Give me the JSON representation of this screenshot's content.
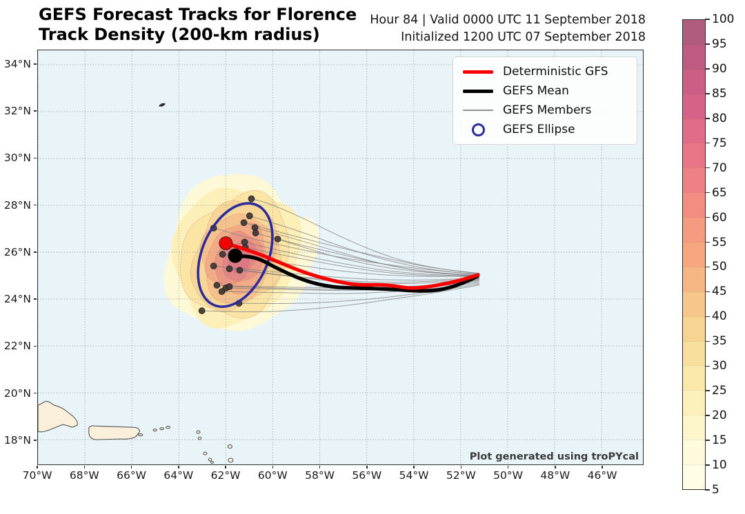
{
  "title": {
    "line1": "GEFS Forecast Tracks for Florence",
    "line2": "Track Density (200-km radius)"
  },
  "subtitle": {
    "line1": "Hour 84 | Valid 0000 UTC 11 September 2018",
    "line2": "Initialized 1200 UTC 07 September 2018"
  },
  "watermark": "Plot generated using troPYcal",
  "legend": {
    "items": [
      {
        "label": "Deterministic GFS",
        "swatch": "line-thick",
        "color": "#f80000"
      },
      {
        "label": "GEFS Mean",
        "swatch": "line-thick",
        "color": "#000000"
      },
      {
        "label": "GEFS Members",
        "swatch": "line-thin",
        "color": "#909090"
      },
      {
        "label": "GEFS Ellipse",
        "swatch": "ring",
        "color": "#2b2b9e"
      }
    ]
  },
  "colorbar": {
    "min": 5,
    "max": 100,
    "tick_step": 5,
    "ticks": [
      5,
      10,
      15,
      20,
      25,
      30,
      35,
      40,
      45,
      50,
      55,
      60,
      65,
      70,
      75,
      80,
      85,
      90,
      95,
      100
    ],
    "colors_bottom_to_top": [
      "#fffde5",
      "#fefadb",
      "#fdf6cb",
      "#fcf0bb",
      "#fbe9ac",
      "#f9df9e",
      "#f8d493",
      "#f7c68b",
      "#f6b684",
      "#f7a67f",
      "#f69a80",
      "#f38d81",
      "#ef8083",
      "#e97586",
      "#e06c87",
      "#d66387",
      "#cc5d85",
      "#bf5a82",
      "#b05c7f"
    ]
  },
  "map_style": {
    "sea_color": "#e9f4f8",
    "land_color": "#f9efda",
    "coast_color": "#555555",
    "grid_color": "#98a2a8",
    "frame_color": "#2c2c2c",
    "deterministic_color": "#f80000",
    "mean_color": "#000000",
    "member_color": "#7d7d7d",
    "member_dot_color": "#3d3636",
    "ellipse_color": "#2b2b9e"
  },
  "chart_data": {
    "type": "line",
    "title": "GEFS Forecast Tracks for Florence — Track Density (200-km radius)",
    "grid": "dotted",
    "x_axis": {
      "unit": "°W",
      "ticks": [
        70,
        68,
        66,
        64,
        62,
        60,
        58,
        56,
        54,
        52,
        50,
        48,
        46
      ],
      "range_lon_w": [
        70.0,
        44.2
      ]
    },
    "y_axis": {
      "unit": "°N",
      "ticks": [
        34,
        32,
        30,
        28,
        26,
        24,
        22,
        20,
        18
      ],
      "range_lat_n": [
        16.9,
        34.6
      ]
    },
    "deterministic_track": [
      [
        51.26,
        25.03
      ],
      [
        52.0,
        24.79
      ],
      [
        53.1,
        24.56
      ],
      [
        54.1,
        24.44
      ],
      [
        54.8,
        24.56
      ],
      [
        55.5,
        24.62
      ],
      [
        56.4,
        24.59
      ],
      [
        57.5,
        24.79
      ],
      [
        58.7,
        25.14
      ],
      [
        59.9,
        25.64
      ],
      [
        60.7,
        25.97
      ],
      [
        62.0,
        26.38
      ]
    ],
    "mean_track": [
      [
        51.29,
        24.97
      ],
      [
        52.0,
        24.62
      ],
      [
        53.0,
        24.35
      ],
      [
        54.0,
        24.35
      ],
      [
        54.8,
        24.41
      ],
      [
        56.3,
        24.47
      ],
      [
        57.5,
        24.5
      ],
      [
        58.7,
        24.79
      ],
      [
        59.9,
        25.35
      ],
      [
        60.7,
        25.79
      ],
      [
        61.6,
        25.85
      ]
    ],
    "deterministic_endpoint": [
      62.0,
      26.38
    ],
    "mean_endpoint": [
      61.6,
      25.85
    ],
    "member_tracks": [
      [
        [
          51.2,
          25.08
        ],
        [
          52.8,
          25.25
        ],
        [
          54.8,
          25.7
        ],
        [
          56.8,
          26.5
        ],
        [
          58.8,
          27.5
        ],
        [
          60.2,
          28.1
        ],
        [
          60.91,
          28.28
        ]
      ],
      [
        [
          51.22,
          25.02
        ],
        [
          53.0,
          25.2
        ],
        [
          55.0,
          25.6
        ],
        [
          57.0,
          26.2
        ],
        [
          59.0,
          26.95
        ],
        [
          60.99,
          27.55
        ]
      ],
      [
        [
          51.2,
          25.1
        ],
        [
          53.2,
          25.3
        ],
        [
          55.2,
          25.75
        ],
        [
          57.2,
          26.2
        ],
        [
          59.3,
          26.75
        ],
        [
          61.23,
          27.26
        ]
      ],
      [
        [
          51.2,
          25.0
        ],
        [
          53.0,
          25.1
        ],
        [
          55.0,
          25.4
        ],
        [
          57.0,
          25.95
        ],
        [
          59.0,
          26.55
        ],
        [
          60.76,
          27.05
        ]
      ],
      [
        [
          51.25,
          24.98
        ],
        [
          53.3,
          25.12
        ],
        [
          55.4,
          25.5
        ],
        [
          57.5,
          26.0
        ],
        [
          59.4,
          26.45
        ],
        [
          60.73,
          26.82
        ]
      ],
      [
        [
          51.2,
          25.05
        ],
        [
          53.0,
          25.2
        ],
        [
          55.0,
          25.45
        ],
        [
          57.0,
          25.75
        ],
        [
          59.0,
          26.15
        ],
        [
          61.0,
          26.6
        ],
        [
          62.52,
          27.03
        ]
      ],
      [
        [
          51.2,
          25.0
        ],
        [
          53.0,
          25.08
        ],
        [
          55.0,
          25.3
        ],
        [
          57.0,
          25.7
        ],
        [
          58.5,
          26.15
        ],
        [
          59.79,
          26.56
        ]
      ],
      [
        [
          51.2,
          24.98
        ],
        [
          53.0,
          25.02
        ],
        [
          55.0,
          25.18
        ],
        [
          57.0,
          25.5
        ],
        [
          59.2,
          25.95
        ],
        [
          61.2,
          26.43
        ]
      ],
      [
        [
          51.2,
          24.95
        ],
        [
          53.0,
          24.98
        ],
        [
          55.0,
          25.1
        ],
        [
          57.0,
          25.38
        ],
        [
          59.2,
          25.8
        ],
        [
          61.17,
          26.2
        ]
      ],
      [
        [
          51.2,
          25.0
        ],
        [
          53.0,
          24.95
        ],
        [
          55.0,
          25.0
        ],
        [
          57.0,
          25.18
        ],
        [
          59.0,
          25.45
        ],
        [
          60.8,
          25.7
        ],
        [
          62.14,
          25.91
        ]
      ],
      [
        [
          51.2,
          24.9
        ],
        [
          53.0,
          24.82
        ],
        [
          55.0,
          24.8
        ],
        [
          57.0,
          24.9
        ],
        [
          59.0,
          25.08
        ],
        [
          61.0,
          25.26
        ],
        [
          62.52,
          25.41
        ]
      ],
      [
        [
          51.2,
          24.88
        ],
        [
          53.0,
          24.76
        ],
        [
          55.0,
          24.7
        ],
        [
          57.0,
          24.78
        ],
        [
          59.2,
          24.98
        ],
        [
          61.85,
          25.29
        ]
      ],
      [
        [
          51.2,
          24.85
        ],
        [
          53.0,
          24.7
        ],
        [
          55.0,
          24.64
        ],
        [
          57.0,
          24.72
        ],
        [
          59.2,
          24.95
        ],
        [
          61.41,
          25.23
        ]
      ],
      [
        [
          51.2,
          24.82
        ],
        [
          53.0,
          24.6
        ],
        [
          55.0,
          24.5
        ],
        [
          57.0,
          24.48
        ],
        [
          59.0,
          24.5
        ],
        [
          61.0,
          24.54
        ],
        [
          62.38,
          24.59
        ]
      ],
      [
        [
          51.2,
          24.8
        ],
        [
          53.0,
          24.55
        ],
        [
          55.0,
          24.42
        ],
        [
          57.0,
          24.36
        ],
        [
          59.0,
          24.4
        ],
        [
          62.0,
          24.47
        ]
      ],
      [
        [
          51.22,
          24.75
        ],
        [
          53.0,
          24.52
        ],
        [
          55.0,
          24.44
        ],
        [
          57.0,
          24.4
        ],
        [
          59.5,
          24.45
        ],
        [
          61.85,
          24.53
        ]
      ],
      [
        [
          51.2,
          24.7
        ],
        [
          53.0,
          24.45
        ],
        [
          55.0,
          24.3
        ],
        [
          57.0,
          24.22
        ],
        [
          59.0,
          24.26
        ],
        [
          62.17,
          24.32
        ]
      ],
      [
        [
          51.2,
          24.65
        ],
        [
          53.0,
          24.35
        ],
        [
          55.0,
          24.08
        ],
        [
          57.0,
          23.9
        ],
        [
          59.0,
          23.8
        ],
        [
          61.44,
          23.82
        ]
      ],
      [
        [
          51.2,
          24.6
        ],
        [
          53.0,
          24.28
        ],
        [
          55.0,
          23.98
        ],
        [
          57.0,
          23.7
        ],
        [
          59.2,
          23.5
        ],
        [
          61.0,
          23.44
        ],
        [
          63.02,
          23.5
        ]
      ]
    ],
    "member_endpoints": [
      [
        60.91,
        28.28
      ],
      [
        60.99,
        27.55
      ],
      [
        61.23,
        27.26
      ],
      [
        60.76,
        27.05
      ],
      [
        60.73,
        26.82
      ],
      [
        62.52,
        27.03
      ],
      [
        59.79,
        26.56
      ],
      [
        61.2,
        26.43
      ],
      [
        61.17,
        26.2
      ],
      [
        62.14,
        25.91
      ],
      [
        62.52,
        25.41
      ],
      [
        61.85,
        25.29
      ],
      [
        61.41,
        25.23
      ],
      [
        62.38,
        24.59
      ],
      [
        62.0,
        24.47
      ],
      [
        61.85,
        24.53
      ],
      [
        62.17,
        24.32
      ],
      [
        61.44,
        23.82
      ],
      [
        63.02,
        23.5
      ]
    ],
    "ellipse": {
      "center": [
        61.6,
        25.88
      ],
      "semi_major_deg": 2.32,
      "semi_minor_deg": 1.41,
      "rotation_deg": 23
    },
    "density": {
      "center": [
        61.62,
        25.9
      ],
      "rotation_deg": 14,
      "peak_value_percent": 65,
      "levels": [
        {
          "value": 5,
          "color": "#fdf8d6",
          "rx_deg": 2.93,
          "ry_deg": 3.4
        },
        {
          "value": 10,
          "color": "#fcefb8",
          "rx_deg": 2.58,
          "ry_deg": 3.05
        },
        {
          "value": 15,
          "color": "#fae5a4",
          "rx_deg": 2.23,
          "ry_deg": 2.67
        },
        {
          "value": 25,
          "color": "#f8d697",
          "rx_deg": 1.88,
          "ry_deg": 2.29
        },
        {
          "value": 35,
          "color": "#f5c28d",
          "rx_deg": 1.55,
          "ry_deg": 1.9
        },
        {
          "value": 45,
          "color": "#f1ab86",
          "rx_deg": 1.23,
          "ry_deg": 1.55
        },
        {
          "value": 55,
          "color": "#ea9684",
          "rx_deg": 0.94,
          "ry_deg": 1.2
        },
        {
          "value": 60,
          "color": "#e38687",
          "rx_deg": 0.67,
          "ry_deg": 0.88
        },
        {
          "value": 65,
          "color": "#db7a84",
          "rx_deg": 0.41,
          "ry_deg": 0.56
        }
      ]
    }
  }
}
